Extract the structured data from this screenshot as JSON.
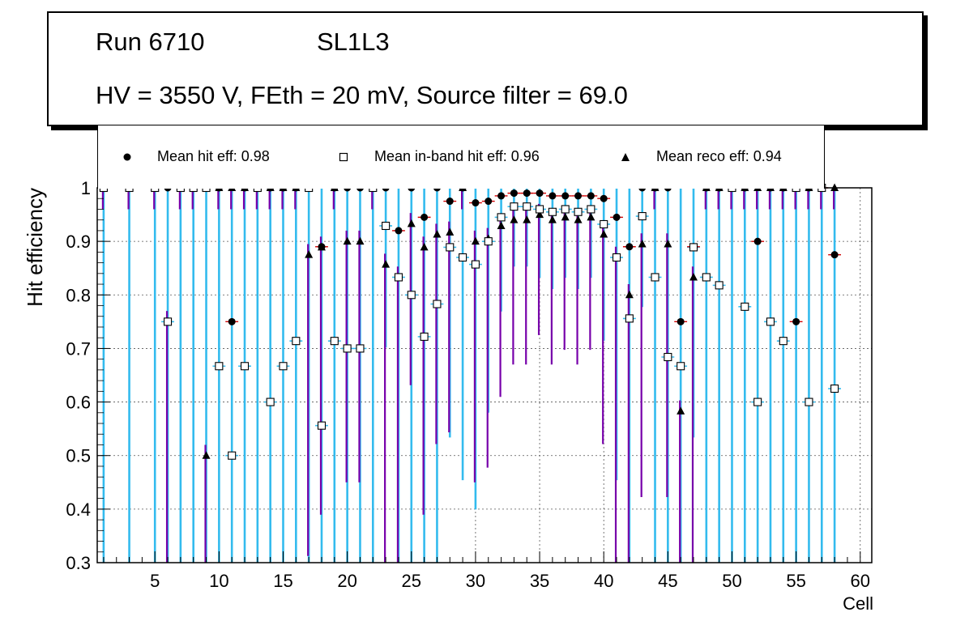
{
  "header": {
    "run": "Run 6710",
    "layer": "SL1L3",
    "conditions": "HV = 3550 V, FEth = 20 mV, Source filter = 69.0"
  },
  "legend": [
    {
      "label": "Mean hit  eff: 0.98",
      "marker": "circle-icon"
    },
    {
      "label": "Mean in-band hit eff: 0.96",
      "marker": "open-square-icon"
    },
    {
      "label": "Mean reco eff: 0.94",
      "marker": "triangle-icon"
    }
  ],
  "colors": {
    "hit_err": "#d00000",
    "inband_err": "#33bbee",
    "reco_err": "#7700aa",
    "grid": "#555555"
  },
  "chart_data": {
    "type": "scatter",
    "title": "",
    "xlabel": "Cell",
    "ylabel": "Hit efficiency",
    "xlim": [
      0.5,
      60.9
    ],
    "ylim": [
      0.3,
      1.0
    ],
    "xticks": [
      5,
      10,
      15,
      20,
      25,
      30,
      35,
      40,
      45,
      50,
      55,
      60
    ],
    "yticks": [
      0.3,
      0.4,
      0.5,
      0.6,
      0.7,
      0.8,
      0.9,
      1.0
    ],
    "ytick_labels": [
      "0.3",
      "0.4",
      "0.5",
      "0.6",
      "0.7",
      "0.8",
      "0.9",
      "1"
    ],
    "grid": true,
    "series": [
      {
        "name": "Mean hit eff",
        "marker": "circle",
        "x": [
          1,
          3,
          5,
          6,
          7,
          8,
          9,
          10,
          11,
          12,
          13,
          14,
          15,
          16,
          17,
          18,
          19,
          20,
          21,
          22,
          23,
          24,
          25,
          26,
          27,
          28,
          29,
          30,
          31,
          32,
          33,
          34,
          35,
          36,
          37,
          38,
          39,
          40,
          41,
          42,
          43,
          44,
          45,
          46,
          47,
          48,
          49,
          50,
          51,
          52,
          53,
          54,
          55,
          56,
          57,
          58
        ],
        "y": [
          1,
          1,
          1,
          1,
          1,
          1,
          1,
          1,
          0.75,
          1,
          1,
          1,
          1,
          1,
          1,
          0.89,
          1,
          1,
          1,
          1,
          1,
          0.92,
          1,
          0.945,
          1,
          0.975,
          1,
          0.972,
          0.975,
          0.985,
          0.99,
          0.99,
          0.99,
          0.985,
          0.985,
          0.985,
          0.985,
          0.98,
          0.945,
          0.89,
          1,
          1,
          1,
          0.75,
          0.89,
          1,
          1,
          1,
          1,
          0.9,
          1,
          1,
          0.75,
          1,
          1,
          0.875
        ]
      },
      {
        "name": "Mean in-band hit eff",
        "marker": "open-square",
        "x": [
          1,
          3,
          5,
          6,
          7,
          8,
          9,
          10,
          11,
          12,
          13,
          14,
          15,
          16,
          17,
          18,
          19,
          20,
          21,
          22,
          23,
          24,
          25,
          26,
          27,
          28,
          29,
          30,
          31,
          32,
          33,
          34,
          35,
          36,
          37,
          38,
          39,
          40,
          41,
          42,
          43,
          44,
          45,
          46,
          47,
          48,
          49,
          50,
          51,
          52,
          53,
          54,
          55,
          56,
          57,
          58
        ],
        "y": [
          1,
          1,
          1,
          0.75,
          1,
          1,
          1,
          0.667,
          0.5,
          0.667,
          1,
          0.6,
          0.667,
          0.714,
          1,
          0.556,
          0.714,
          0.7,
          0.7,
          1,
          0.929,
          0.833,
          0.8,
          0.722,
          0.783,
          0.889,
          0.87,
          0.857,
          0.9,
          0.945,
          0.965,
          0.965,
          0.96,
          0.955,
          0.96,
          0.955,
          0.96,
          0.932,
          0.87,
          0.756,
          0.947,
          0.833,
          0.684,
          0.667,
          0.889,
          0.833,
          0.818,
          1,
          0.778,
          0.6,
          0.75,
          0.714,
          1,
          0.6,
          1,
          0.625
        ]
      },
      {
        "name": "Mean reco eff",
        "marker": "triangle",
        "x": [
          1,
          3,
          5,
          6,
          7,
          8,
          9,
          10,
          11,
          12,
          13,
          14,
          15,
          16,
          17,
          18,
          19,
          20,
          21,
          22,
          23,
          24,
          25,
          26,
          27,
          28,
          29,
          30,
          31,
          32,
          33,
          34,
          35,
          36,
          37,
          38,
          39,
          40,
          41,
          42,
          43,
          44,
          45,
          46,
          47,
          48,
          49,
          50,
          51,
          52,
          53,
          54,
          55,
          56,
          57,
          58
        ],
        "y": [
          1,
          1,
          1,
          0.75,
          1,
          1,
          0.5,
          1,
          1,
          1,
          1,
          1,
          1,
          1,
          0.875,
          0.889,
          1,
          0.9,
          0.9,
          1,
          0.857,
          0.833,
          0.933,
          0.889,
          0.913,
          0.917,
          1,
          0.9,
          0.905,
          0.929,
          0.94,
          0.94,
          0.95,
          0.94,
          0.945,
          0.94,
          0.945,
          0.913,
          0.87,
          0.8,
          0.895,
          1,
          0.895,
          0.583,
          0.833,
          1,
          1,
          1,
          1,
          1,
          1,
          1,
          1,
          1,
          1,
          1
        ]
      }
    ]
  }
}
